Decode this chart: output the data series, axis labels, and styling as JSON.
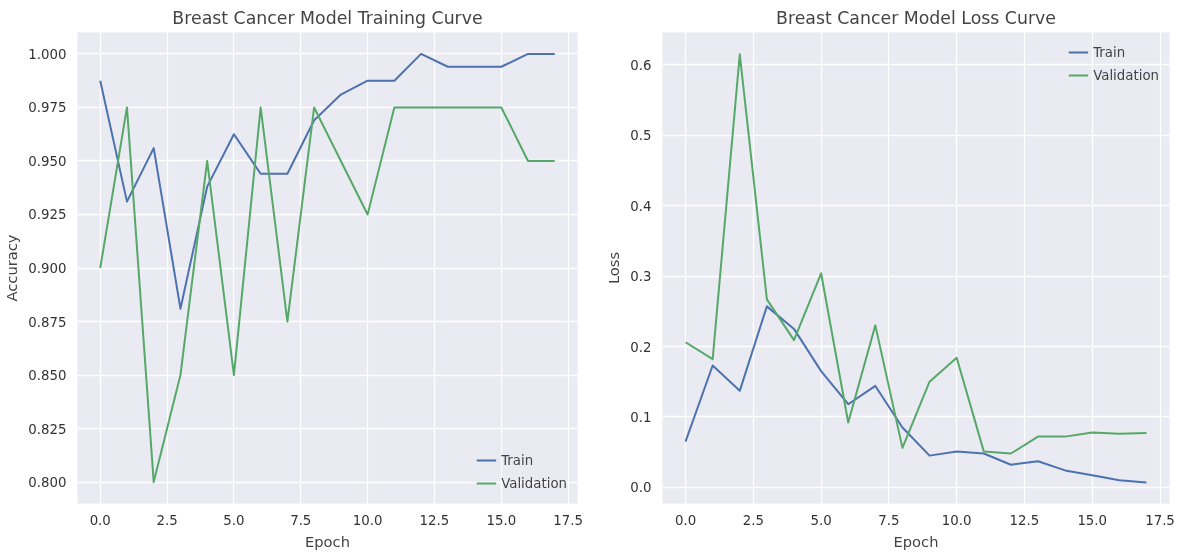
{
  "chart_data": [
    {
      "type": "line",
      "title": "Breast Cancer Model Training Curve",
      "xlabel": "Epoch",
      "ylabel": "Accuracy",
      "x": [
        0,
        1,
        2,
        3,
        4,
        5,
        6,
        7,
        8,
        9,
        10,
        11,
        12,
        13,
        14,
        15,
        16,
        17
      ],
      "series": [
        {
          "name": "Train",
          "color": "#4c72b0",
          "values": [
            0.9875,
            0.931,
            0.956,
            0.881,
            0.938,
            0.9625,
            0.944,
            0.944,
            0.969,
            0.981,
            0.9875,
            0.9875,
            1.0,
            0.994,
            0.994,
            0.994,
            1.0,
            1.0
          ]
        },
        {
          "name": "Validation",
          "color": "#55a868",
          "values": [
            0.9,
            0.975,
            0.8,
            0.85,
            0.95,
            0.85,
            0.975,
            0.875,
            0.975,
            0.95,
            0.925,
            0.975,
            0.975,
            0.975,
            0.975,
            0.975,
            0.95,
            0.95
          ]
        }
      ],
      "xlim": [
        -0.85,
        17.85
      ],
      "ylim": [
        0.79,
        1.01
      ],
      "xticks": [
        {
          "value": 0,
          "label": "0.0"
        },
        {
          "value": 2.5,
          "label": "2.5"
        },
        {
          "value": 5,
          "label": "5.0"
        },
        {
          "value": 7.5,
          "label": "7.5"
        },
        {
          "value": 10,
          "label": "10.0"
        },
        {
          "value": 12.5,
          "label": "12.5"
        },
        {
          "value": 15,
          "label": "15.0"
        },
        {
          "value": 17.5,
          "label": "17.5"
        }
      ],
      "yticks": [
        {
          "value": 0.8,
          "label": "0.800"
        },
        {
          "value": 0.825,
          "label": "0.825"
        },
        {
          "value": 0.85,
          "label": "0.850"
        },
        {
          "value": 0.875,
          "label": "0.875"
        },
        {
          "value": 0.9,
          "label": "0.900"
        },
        {
          "value": 0.925,
          "label": "0.925"
        },
        {
          "value": 0.95,
          "label": "0.950"
        },
        {
          "value": 0.975,
          "label": "0.975"
        },
        {
          "value": 1.0,
          "label": "1.000"
        }
      ],
      "grid": true,
      "legend": "bottom right"
    },
    {
      "type": "line",
      "title": "Breast Cancer Model Loss Curve",
      "xlabel": "Epoch",
      "ylabel": "Loss",
      "x": [
        0,
        1,
        2,
        3,
        4,
        5,
        6,
        7,
        8,
        9,
        10,
        11,
        12,
        13,
        14,
        15,
        16,
        17
      ],
      "series": [
        {
          "name": "Train",
          "color": "#4c72b0",
          "values": [
            0.065,
            0.173,
            0.137,
            0.257,
            0.225,
            0.165,
            0.118,
            0.144,
            0.085,
            0.045,
            0.051,
            0.048,
            0.032,
            0.037,
            0.024,
            0.017,
            0.01,
            0.007
          ]
        },
        {
          "name": "Validation",
          "color": "#55a868",
          "values": [
            0.206,
            0.182,
            0.615,
            0.267,
            0.209,
            0.304,
            0.092,
            0.23,
            0.056,
            0.15,
            0.184,
            0.051,
            0.048,
            0.072,
            0.072,
            0.078,
            0.076,
            0.077
          ]
        }
      ],
      "xlim": [
        -0.85,
        17.85
      ],
      "ylim": [
        -0.023,
        0.646
      ],
      "xticks": [
        {
          "value": 0,
          "label": "0.0"
        },
        {
          "value": 2.5,
          "label": "2.5"
        },
        {
          "value": 5,
          "label": "5.0"
        },
        {
          "value": 7.5,
          "label": "7.5"
        },
        {
          "value": 10,
          "label": "10.0"
        },
        {
          "value": 12.5,
          "label": "12.5"
        },
        {
          "value": 15,
          "label": "15.0"
        },
        {
          "value": 17.5,
          "label": "17.5"
        }
      ],
      "yticks": [
        {
          "value": 0.0,
          "label": "0.0"
        },
        {
          "value": 0.1,
          "label": "0.1"
        },
        {
          "value": 0.2,
          "label": "0.2"
        },
        {
          "value": 0.3,
          "label": "0.3"
        },
        {
          "value": 0.4,
          "label": "0.4"
        },
        {
          "value": 0.5,
          "label": "0.5"
        },
        {
          "value": 0.6,
          "label": "0.6"
        }
      ],
      "grid": true,
      "legend": "top right"
    }
  ]
}
